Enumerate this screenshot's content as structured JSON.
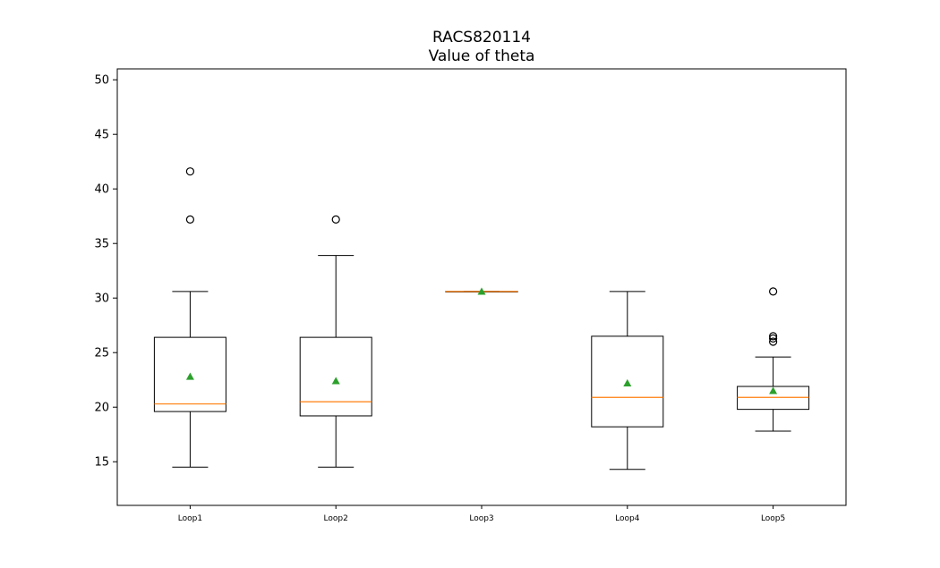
{
  "chart_data": {
    "type": "box",
    "title": "RACS820114",
    "subtitle": "Value of theta",
    "xlabel": "",
    "ylabel": "",
    "ylim": [
      11,
      51
    ],
    "yticks": [
      15,
      20,
      25,
      30,
      35,
      40,
      45,
      50
    ],
    "grid": false,
    "colors": {
      "box": "#000000",
      "median": "#ff7f0e",
      "mean": "#2ca02c",
      "flier": "#000000"
    },
    "categories": [
      "Loop1",
      "Loop2",
      "Loop3",
      "Loop4",
      "Loop5"
    ],
    "boxes": [
      {
        "name": "Loop1",
        "whisker_low": 14.5,
        "q1": 19.6,
        "median": 20.3,
        "q3": 26.4,
        "whisker_high": 30.6,
        "mean": 22.8,
        "fliers": [
          37.2,
          41.6
        ]
      },
      {
        "name": "Loop2",
        "whisker_low": 14.5,
        "q1": 19.2,
        "median": 20.5,
        "q3": 26.4,
        "whisker_high": 33.9,
        "mean": 22.4,
        "fliers": [
          37.2
        ]
      },
      {
        "name": "Loop3",
        "whisker_low": 30.6,
        "q1": 30.6,
        "median": 30.6,
        "q3": 30.6,
        "whisker_high": 30.6,
        "mean": 30.6,
        "fliers": []
      },
      {
        "name": "Loop4",
        "whisker_low": 14.3,
        "q1": 18.2,
        "median": 20.9,
        "q3": 26.5,
        "whisker_high": 30.6,
        "mean": 22.2,
        "fliers": []
      },
      {
        "name": "Loop5",
        "whisker_low": 17.8,
        "q1": 19.8,
        "median": 20.9,
        "q3": 21.9,
        "whisker_high": 24.6,
        "mean": 21.5,
        "fliers": [
          26.0,
          26.3,
          26.5,
          30.6
        ]
      }
    ]
  }
}
